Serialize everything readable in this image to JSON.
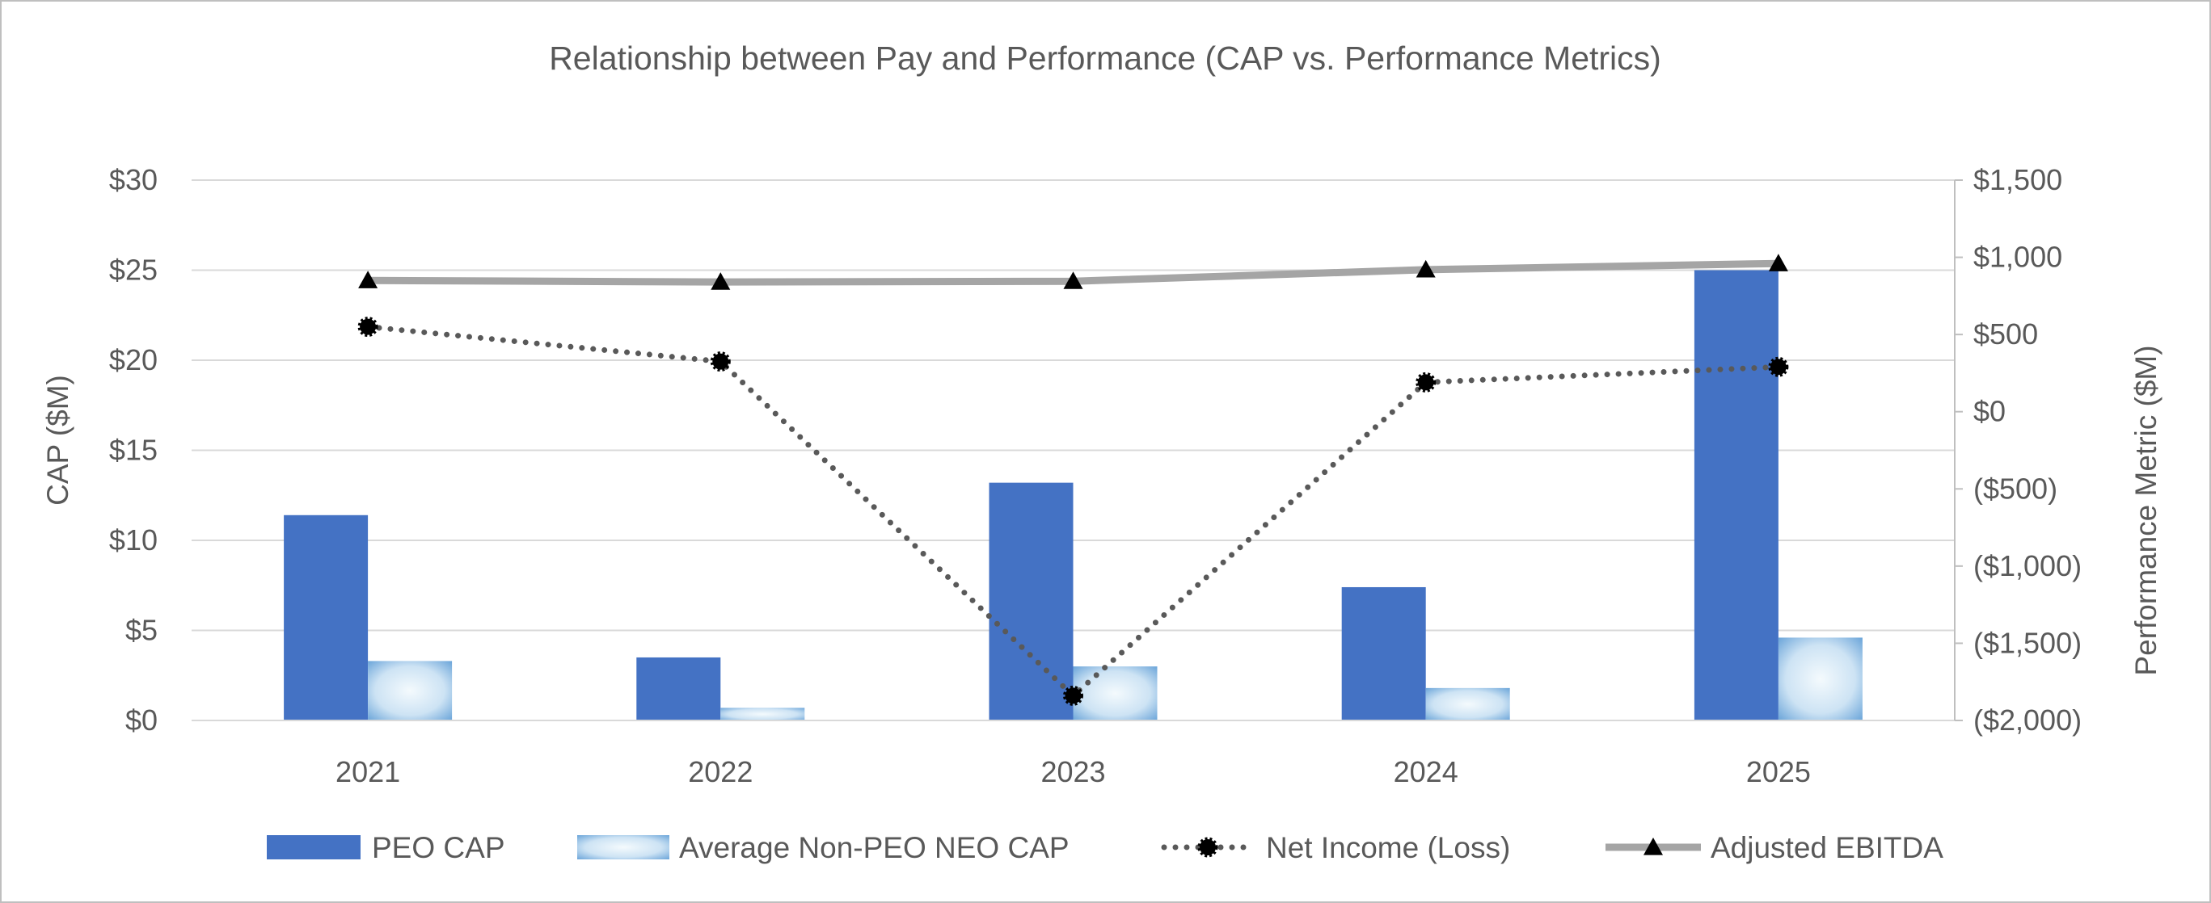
{
  "colors": {
    "peo_bar": "#4472C4",
    "neo_bar_light": "#F4FAFD",
    "neo_bar_dark": "#5B9BD5",
    "net_income": "#595959",
    "ebitda": "#A5A5A5",
    "grid": "#D9D9D9",
    "border": "#BFBFBF",
    "text": "#595959"
  },
  "chart_data": {
    "type": "bar",
    "title": "Relationship between Pay and Performance (CAP vs. Performance Metrics)",
    "categories": [
      "2021",
      "2022",
      "2023",
      "2024",
      "2025"
    ],
    "xlabel": "",
    "ylabel": "CAP ($M)",
    "ylabel_right": "Performance Metric ($M)",
    "ylim": [
      0,
      30
    ],
    "ylim_right": [
      -2000,
      1500
    ],
    "y_ticks": [
      "$0",
      "$5",
      "$10",
      "$15",
      "$20",
      "$25",
      "$30"
    ],
    "y_tick_values": [
      0,
      5,
      10,
      15,
      20,
      25,
      30
    ],
    "y_right_ticks": [
      "($2,000)",
      "($1,500)",
      "($1,000)",
      "($500)",
      "$0",
      "$500",
      "$1,000",
      "$1,500"
    ],
    "y_right_tick_values": [
      -2000,
      -1500,
      -1000,
      -500,
      0,
      500,
      1000,
      1500
    ],
    "grid": true,
    "legend_position": "bottom",
    "series": [
      {
        "name": "PEO CAP",
        "type": "bar",
        "axis": "left",
        "values": [
          11.4,
          3.5,
          13.2,
          7.4,
          25.0
        ]
      },
      {
        "name": "Average Non-PEO NEO CAP",
        "type": "bar",
        "axis": "left",
        "values": [
          3.3,
          0.7,
          3.0,
          1.8,
          4.6
        ]
      },
      {
        "name": "Net Income (Loss)",
        "type": "line",
        "style": "dotted",
        "marker": "circle",
        "axis": "right",
        "values": [
          550,
          325,
          -1840,
          190,
          290
        ]
      },
      {
        "name": "Adjusted EBITDA",
        "type": "line",
        "style": "solid",
        "marker": "triangle",
        "axis": "right",
        "values": [
          850,
          840,
          845,
          920,
          960
        ]
      }
    ]
  }
}
